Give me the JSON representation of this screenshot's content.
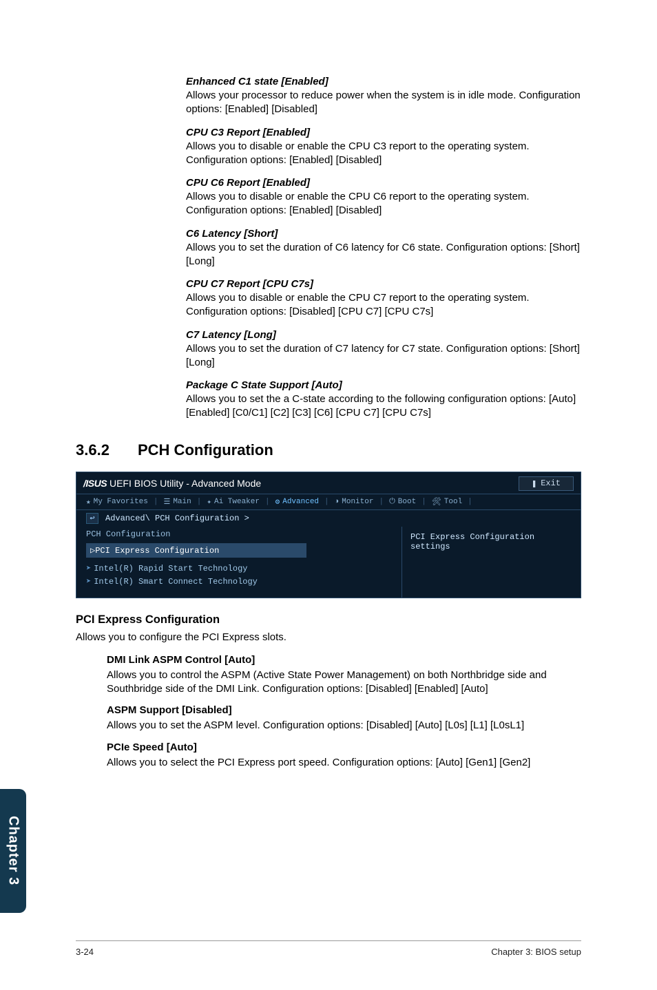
{
  "subitems": [
    {
      "head": "Enhanced C1 state [Enabled]",
      "text": "Allows your processor to reduce power when the system is in idle mode. Configuration options: [Enabled] [Disabled]"
    },
    {
      "head": "CPU C3 Report [Enabled]",
      "text": "Allows you to disable or enable the CPU C3 report to the operating system. Configuration options: [Enabled] [Disabled]"
    },
    {
      "head": "CPU C6 Report [Enabled]",
      "text": "Allows you to disable or enable the CPU C6 report to the operating system. Configuration options: [Enabled] [Disabled]"
    },
    {
      "head": "C6 Latency [Short]",
      "text": "Allows you to set the duration of C6 latency for C6 state. Configuration options: [Short] [Long]"
    },
    {
      "head": "CPU C7 Report [CPU C7s]",
      "text": "Allows you to disable or enable the CPU C7 report to the operating system. Configuration options: [Disabled] [CPU C7] [CPU C7s]"
    },
    {
      "head": "C7 Latency [Long]",
      "text": "Allows you to set the duration of C7 latency for C7 state. Configuration options: [Short] [Long]"
    },
    {
      "head": "Package C State Support [Auto]",
      "text": "Allows you to set the a C-state according to the following configuration options: [Auto] [Enabled] [C0/C1] [C2] [C3] [C6] [CPU C7] [CPU C7s]"
    }
  ],
  "section": {
    "num": "3.6.2",
    "title": "PCH Configuration"
  },
  "bios": {
    "title_brand": "/ISUS",
    "title_rest": " UEFI BIOS Utility - Advanced Mode",
    "exit": "Exit",
    "tabs": {
      "fav": "My Favorites",
      "main": "Main",
      "tweaker": "Ai Tweaker",
      "advanced": "Advanced",
      "monitor": "Monitor",
      "boot": "Boot",
      "tool": "Tool"
    },
    "breadcrumb": "Advanced\\ PCH Configuration >",
    "list_label": "PCH Configuration",
    "selected": "PCI Express Configuration",
    "items": [
      "Intel(R) Rapid Start Technology",
      "Intel(R) Smart Connect Technology"
    ],
    "right_text": "PCI Express Configuration settings"
  },
  "pci_head": "PCI Express Configuration",
  "pci_text": "Allows you to configure the PCI Express slots.",
  "indent": [
    {
      "head": "DMI Link ASPM Control [Auto]",
      "text": "Allows you to control the ASPM (Active State Power Management) on both Northbridge side and Southbridge side of the DMI Link. Configuration options: [Disabled] [Enabled] [Auto]"
    },
    {
      "head": "ASPM Support [Disabled]",
      "text": "Allows you to set the ASPM level. Configuration options: [Disabled] [Auto] [L0s] [L1] [L0sL1]"
    },
    {
      "head": "PCIe Speed [Auto]",
      "text": "Allows you to select the PCI Express port speed. Configuration options: [Auto] [Gen1] [Gen2]"
    }
  ],
  "sidetab": "Chapter 3",
  "footer": {
    "left": "3-24",
    "right": "Chapter 3: BIOS setup"
  }
}
